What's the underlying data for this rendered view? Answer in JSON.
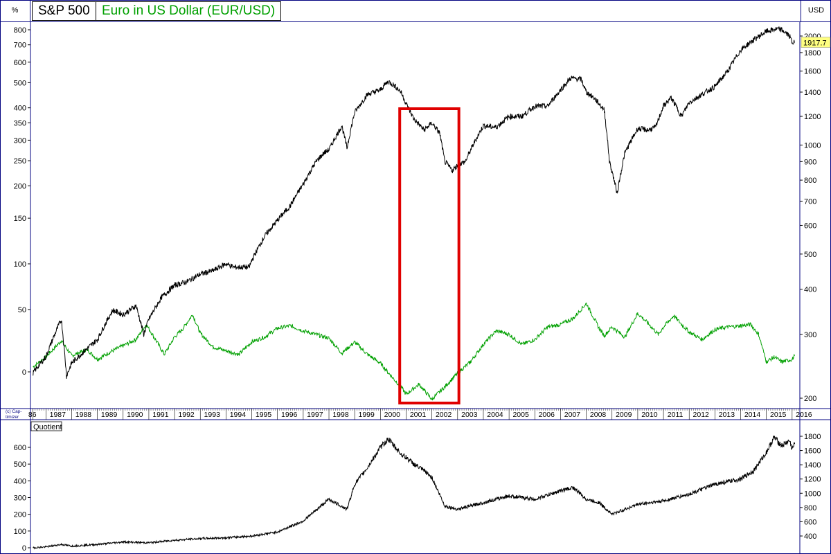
{
  "header": {
    "left_unit": "%",
    "right_unit": "USD",
    "series1_title": "S&P 500",
    "series2_title": "Euro in US Dollar (EUR/USD)"
  },
  "colors": {
    "sp500": "#000000",
    "eurusd": "#00a000",
    "highlight": "#e00000",
    "frame": "#000080",
    "last_value_bg": "#ffff80"
  },
  "copyright": [
    "(c) Cap-",
    "timizer"
  ],
  "last_value_label": "1917.7",
  "quotient_label": "Quotient",
  "chart_data": [
    {
      "type": "line",
      "title": "S&P 500 vs Euro in US Dollar (EUR/USD)",
      "y_left_ticks": [
        "800",
        "700",
        "600",
        "500",
        "400",
        "350",
        "300",
        "250",
        "200",
        "150",
        "100",
        "50",
        "0"
      ],
      "y_right_ticks": [
        "2000",
        "1800",
        "1600",
        "1400",
        "1200",
        "1000",
        "900",
        "800",
        "700",
        "600",
        "500",
        "400",
        "300",
        "200"
      ],
      "x_ticks": [
        "86",
        "1987",
        "1988",
        "1989",
        "1990",
        "1991",
        "1992",
        "1993",
        "1994",
        "1995",
        "1996",
        "1997",
        "1998",
        "1999",
        "2000",
        "2001",
        "2002",
        "2003",
        "2004",
        "2005",
        "2006",
        "2007",
        "2008",
        "2009",
        "2010",
        "2011",
        "2012",
        "2013",
        "2014",
        "2015",
        "2016"
      ],
      "y_scale": "log",
      "series": [
        {
          "name": "S&P 500",
          "x": [
            1986.5,
            1987.0,
            1987.6,
            1987.8,
            1988.0,
            1988.5,
            1989.0,
            1989.6,
            1990.0,
            1990.5,
            1990.8,
            1991.0,
            1991.5,
            1992.0,
            1992.5,
            1993.0,
            1993.5,
            1994.0,
            1994.3,
            1994.9,
            1995.0,
            1995.5,
            1996.0,
            1996.5,
            1997.0,
            1997.5,
            1997.8,
            1998.0,
            1998.5,
            1998.7,
            1999.0,
            1999.5,
            2000.0,
            2000.3,
            2000.6,
            2000.8,
            2001.0,
            2001.3,
            2001.7,
            2002.0,
            2002.3,
            2002.5,
            2002.8,
            2003.0,
            2003.3,
            2003.6,
            2004.0,
            2004.5,
            2005.0,
            2005.5,
            2006.0,
            2006.5,
            2007.0,
            2007.4,
            2007.8,
            2008.0,
            2008.3,
            2008.7,
            2008.9,
            2009.2,
            2009.5,
            2010.0,
            2010.4,
            2010.7,
            2011.0,
            2011.3,
            2011.7,
            2012.0,
            2012.5,
            2013.0,
            2013.5,
            2014.0,
            2014.5,
            2015.0,
            2015.4,
            2015.6,
            2015.9,
            2016.0,
            2016.1
          ],
          "values": [
            235,
            260,
            330,
            230,
            250,
            270,
            290,
            350,
            340,
            360,
            300,
            330,
            380,
            410,
            420,
            440,
            450,
            470,
            460,
            460,
            480,
            560,
            620,
            680,
            780,
            900,
            950,
            970,
            1130,
            980,
            1230,
            1380,
            1420,
            1500,
            1450,
            1400,
            1300,
            1180,
            1100,
            1150,
            1080,
            900,
            850,
            880,
            900,
            1000,
            1130,
            1120,
            1200,
            1200,
            1280,
            1280,
            1420,
            1530,
            1520,
            1400,
            1350,
            1250,
            900,
            735,
            950,
            1110,
            1100,
            1120,
            1280,
            1350,
            1200,
            1310,
            1380,
            1450,
            1600,
            1830,
            1950,
            2060,
            2090,
            2080,
            2000,
            1920,
            1917.7
          ]
        },
        {
          "name": "Euro in US Dollar (EUR/USD)",
          "x": [
            1986.5,
            1987.0,
            1987.6,
            1988.0,
            1988.6,
            1989.0,
            1989.5,
            1990.0,
            1990.5,
            1990.9,
            1991.2,
            1991.6,
            1992.0,
            1992.3,
            1992.7,
            1993.0,
            1993.5,
            1994.0,
            1994.5,
            1995.0,
            1995.5,
            1996.0,
            1996.5,
            1997.0,
            1997.5,
            1998.0,
            1998.5,
            1999.0,
            1999.5,
            2000.0,
            2000.4,
            2000.8,
            2001.0,
            2001.5,
            2002.0,
            2002.5,
            2003.0,
            2003.5,
            2004.0,
            2004.5,
            2005.0,
            2005.5,
            2006.0,
            2006.5,
            2007.0,
            2007.5,
            2008.0,
            2008.5,
            2008.7,
            2009.0,
            2009.5,
            2010.0,
            2010.4,
            2010.8,
            2011.0,
            2011.4,
            2011.8,
            2012.0,
            2012.5,
            2013.0,
            2013.5,
            2014.0,
            2014.4,
            2014.7,
            2015.0,
            2015.3,
            2015.6,
            2016.0,
            2016.1
          ],
          "values": [
            4,
            12,
            25,
            13,
            18,
            10,
            16,
            21,
            26,
            38,
            28,
            14,
            28,
            34,
            46,
            31,
            20,
            17,
            14,
            24,
            28,
            35,
            37,
            33,
            30,
            27,
            15,
            24,
            14,
            7,
            -3,
            -12,
            -18,
            -10,
            -22,
            -12,
            -1,
            8,
            22,
            33,
            30,
            22,
            26,
            36,
            38,
            43,
            55,
            35,
            29,
            36,
            28,
            47,
            39,
            30,
            36,
            45,
            36,
            32,
            26,
            34,
            36,
            37,
            38,
            30,
            8,
            12,
            8,
            10,
            13
          ]
        }
      ],
      "annotations": [
        "highlighted period 2001–2003 (red rectangle)"
      ]
    },
    {
      "type": "line",
      "title": "Quotient",
      "y_left_ticks": [
        "600",
        "500",
        "400",
        "300",
        "200",
        "100",
        "0"
      ],
      "y_right_ticks": [
        "1800",
        "1600",
        "1400",
        "1200",
        "1000",
        "800",
        "600",
        "400"
      ],
      "series": [
        {
          "name": "Quotient",
          "x": [
            1986.5,
            1987.0,
            1987.6,
            1988.0,
            1989.0,
            1990.0,
            1991.0,
            1992.0,
            1993.0,
            1994.0,
            1995.0,
            1996.0,
            1997.0,
            1998.0,
            1998.7,
            1999.0,
            1999.5,
            2000.0,
            2000.3,
            2000.8,
            2001.0,
            2001.3,
            2001.7,
            2002.0,
            2002.5,
            2003.0,
            2004.0,
            2005.0,
            2006.0,
            2007.0,
            2007.5,
            2008.0,
            2008.5,
            2009.0,
            2009.5,
            2010.0,
            2011.0,
            2012.0,
            2013.0,
            2014.0,
            2014.5,
            2015.0,
            2015.3,
            2015.6,
            2015.9,
            2016.0,
            2016.1
          ],
          "values": [
            0,
            5,
            20,
            10,
            20,
            35,
            30,
            45,
            55,
            60,
            70,
            95,
            160,
            290,
            230,
            380,
            480,
            600,
            650,
            560,
            540,
            500,
            460,
            420,
            250,
            230,
            270,
            310,
            290,
            340,
            360,
            290,
            270,
            200,
            230,
            260,
            280,
            320,
            380,
            410,
            460,
            570,
            660,
            610,
            640,
            590,
            620
          ]
        }
      ]
    }
  ]
}
